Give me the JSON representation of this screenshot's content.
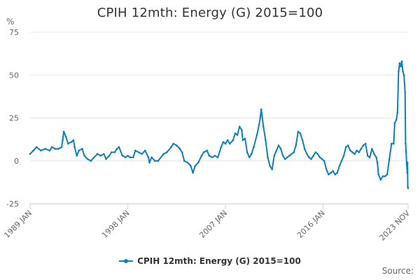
{
  "chart_data": {
    "type": "line",
    "title": "CPIH 12mth: Energy (G) 2015=100",
    "units_label": "%",
    "ylim": [
      -25,
      75
    ],
    "y_ticks": [
      {
        "label": "75",
        "value": 75
      },
      {
        "label": "50",
        "value": 50
      },
      {
        "label": "25",
        "value": 25
      },
      {
        "label": "0",
        "value": 0
      },
      {
        "label": "-25",
        "value": -25
      }
    ],
    "x_range": [
      1989.0,
      2023.83
    ],
    "x_ticks": [
      {
        "label": "1989 JAN",
        "value": 1989.0
      },
      {
        "label": "1998 JAN",
        "value": 1998.0
      },
      {
        "label": "2007 JAN",
        "value": 2007.0
      },
      {
        "label": "2016 JAN",
        "value": 2016.0
      },
      {
        "label": "2023 NOV",
        "value": 2023.83
      }
    ],
    "grid": true,
    "legend_position": "bottom",
    "source_label": "Source:",
    "colors": {
      "series": "#0F7EC1",
      "grid": "#e6e6e6",
      "axis": "#ccd6eb"
    },
    "series": [
      {
        "name": "CPIH 12mth: Energy (G) 2015=100",
        "points": [
          [
            1989.0,
            4
          ],
          [
            1989.3,
            6
          ],
          [
            1989.6,
            8
          ],
          [
            1990.0,
            6
          ],
          [
            1990.4,
            7
          ],
          [
            1990.8,
            6
          ],
          [
            1991.0,
            8
          ],
          [
            1991.3,
            7
          ],
          [
            1991.6,
            7
          ],
          [
            1991.9,
            8
          ],
          [
            1992.0,
            12
          ],
          [
            1992.1,
            17
          ],
          [
            1992.3,
            14
          ],
          [
            1992.5,
            10
          ],
          [
            1992.8,
            11
          ],
          [
            1993.0,
            12
          ],
          [
            1993.1,
            8
          ],
          [
            1993.3,
            3
          ],
          [
            1993.5,
            6
          ],
          [
            1993.8,
            7
          ],
          [
            1994.0,
            3
          ],
          [
            1994.3,
            1
          ],
          [
            1994.6,
            0
          ],
          [
            1994.9,
            2
          ],
          [
            1995.2,
            4
          ],
          [
            1995.5,
            3
          ],
          [
            1995.8,
            4
          ],
          [
            1996.0,
            1
          ],
          [
            1996.3,
            3
          ],
          [
            1996.5,
            5
          ],
          [
            1996.8,
            5
          ],
          [
            1997.0,
            7
          ],
          [
            1997.2,
            8
          ],
          [
            1997.5,
            3
          ],
          [
            1997.8,
            2
          ],
          [
            1998.0,
            3
          ],
          [
            1998.2,
            2
          ],
          [
            1998.5,
            2
          ],
          [
            1998.7,
            6
          ],
          [
            1999.0,
            5
          ],
          [
            1999.3,
            4
          ],
          [
            1999.6,
            6
          ],
          [
            1999.9,
            2
          ],
          [
            2000.0,
            -1
          ],
          [
            2000.2,
            2
          ],
          [
            2000.5,
            0
          ],
          [
            2000.8,
            0
          ],
          [
            2001.3,
            4
          ],
          [
            2001.6,
            5
          ],
          [
            2002.0,
            8
          ],
          [
            2002.2,
            10
          ],
          [
            2002.5,
            9
          ],
          [
            2002.8,
            7
          ],
          [
            2003.0,
            5
          ],
          [
            2003.2,
            0
          ],
          [
            2003.5,
            -1
          ],
          [
            2003.8,
            -3
          ],
          [
            2004.0,
            -7
          ],
          [
            2004.2,
            -3
          ],
          [
            2004.5,
            -1
          ],
          [
            2004.8,
            3
          ],
          [
            2005.0,
            5
          ],
          [
            2005.3,
            6
          ],
          [
            2005.5,
            3
          ],
          [
            2005.8,
            2
          ],
          [
            2006.0,
            3
          ],
          [
            2006.3,
            2
          ],
          [
            2006.6,
            8
          ],
          [
            2006.8,
            11
          ],
          [
            2007.0,
            10
          ],
          [
            2007.2,
            12
          ],
          [
            2007.4,
            10
          ],
          [
            2007.7,
            12
          ],
          [
            2007.9,
            16
          ],
          [
            2008.1,
            15
          ],
          [
            2008.3,
            20
          ],
          [
            2008.5,
            18
          ],
          [
            2008.6,
            12
          ],
          [
            2008.8,
            13
          ],
          [
            2009.0,
            5
          ],
          [
            2009.2,
            2
          ],
          [
            2009.4,
            4
          ],
          [
            2009.6,
            8
          ],
          [
            2009.9,
            15
          ],
          [
            2010.1,
            21
          ],
          [
            2010.2,
            25
          ],
          [
            2010.3,
            30
          ],
          [
            2010.5,
            20
          ],
          [
            2010.7,
            12
          ],
          [
            2010.9,
            2
          ],
          [
            2011.1,
            -3
          ],
          [
            2011.3,
            -5
          ],
          [
            2011.5,
            3
          ],
          [
            2011.7,
            6
          ],
          [
            2011.9,
            9
          ],
          [
            2012.1,
            7
          ],
          [
            2012.3,
            3
          ],
          [
            2012.5,
            1
          ],
          [
            2012.7,
            2
          ],
          [
            2012.9,
            3
          ],
          [
            2013.1,
            4
          ],
          [
            2013.3,
            5
          ],
          [
            2013.5,
            9
          ],
          [
            2013.7,
            17
          ],
          [
            2013.9,
            16
          ],
          [
            2014.1,
            12
          ],
          [
            2014.3,
            7
          ],
          [
            2014.5,
            4
          ],
          [
            2014.7,
            2
          ],
          [
            2014.9,
            1
          ],
          [
            2015.1,
            3
          ],
          [
            2015.3,
            5
          ],
          [
            2015.5,
            4
          ],
          [
            2015.7,
            2
          ],
          [
            2015.9,
            1
          ],
          [
            2016.1,
            0
          ],
          [
            2016.3,
            -5
          ],
          [
            2016.5,
            -8
          ],
          [
            2016.7,
            -7
          ],
          [
            2016.9,
            -6
          ],
          [
            2017.1,
            -8
          ],
          [
            2017.3,
            -7
          ],
          [
            2017.5,
            -3
          ],
          [
            2017.7,
            0
          ],
          [
            2017.9,
            3
          ],
          [
            2018.1,
            8
          ],
          [
            2018.3,
            9
          ],
          [
            2018.5,
            6
          ],
          [
            2018.7,
            5
          ],
          [
            2018.9,
            4
          ],
          [
            2019.1,
            6
          ],
          [
            2019.3,
            5
          ],
          [
            2019.5,
            7
          ],
          [
            2019.7,
            9
          ],
          [
            2019.9,
            10
          ],
          [
            2020.1,
            3
          ],
          [
            2020.3,
            2
          ],
          [
            2020.5,
            7
          ],
          [
            2020.7,
            4
          ],
          [
            2020.9,
            2
          ],
          [
            2021.0,
            -1
          ],
          [
            2021.1,
            -8
          ],
          [
            2021.3,
            -11
          ],
          [
            2021.5,
            -9
          ],
          [
            2021.7,
            -9
          ],
          [
            2021.9,
            -8
          ],
          [
            2022.1,
            1
          ],
          [
            2022.3,
            10
          ],
          [
            2022.5,
            10
          ],
          [
            2022.6,
            22
          ],
          [
            2022.75,
            24
          ],
          [
            2022.85,
            28
          ],
          [
            2022.95,
            52
          ],
          [
            2023.05,
            57
          ],
          [
            2023.15,
            55
          ],
          [
            2023.25,
            58
          ],
          [
            2023.35,
            52
          ],
          [
            2023.45,
            50
          ],
          [
            2023.55,
            40
          ],
          [
            2023.6,
            10
          ],
          [
            2023.65,
            5
          ],
          [
            2023.7,
            -2
          ],
          [
            2023.75,
            -7
          ],
          [
            2023.78,
            -1
          ],
          [
            2023.8,
            -15
          ],
          [
            2023.83,
            -16
          ]
        ]
      }
    ]
  }
}
